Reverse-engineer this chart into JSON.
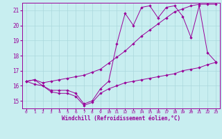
{
  "x": [
    0,
    1,
    2,
    3,
    4,
    5,
    6,
    7,
    8,
    9,
    10,
    11,
    12,
    13,
    14,
    15,
    16,
    17,
    18,
    19,
    20,
    21,
    22,
    23
  ],
  "line_mid": [
    16.3,
    16.4,
    16.0,
    15.7,
    15.7,
    15.7,
    15.5,
    14.8,
    15.0,
    15.8,
    16.3,
    18.8,
    20.8,
    20.0,
    21.2,
    21.3,
    20.5,
    21.2,
    21.3,
    20.6,
    19.2,
    21.3,
    18.2,
    17.6
  ],
  "line_max": [
    16.3,
    16.4,
    16.2,
    16.3,
    16.4,
    16.5,
    16.6,
    16.7,
    16.9,
    17.1,
    17.5,
    17.9,
    18.3,
    18.8,
    19.3,
    19.7,
    20.1,
    20.5,
    20.9,
    21.1,
    21.3,
    21.4,
    21.4,
    21.4
  ],
  "line_min": [
    16.3,
    16.1,
    16.0,
    15.6,
    15.5,
    15.5,
    15.3,
    14.7,
    14.9,
    15.5,
    15.8,
    16.0,
    16.2,
    16.3,
    16.4,
    16.5,
    16.6,
    16.7,
    16.8,
    17.0,
    17.1,
    17.2,
    17.4,
    17.55
  ],
  "line_color": "#990099",
  "bg_color": "#c8eef0",
  "grid_color": "#aad8dc",
  "xlabel": "Windchill (Refroidissement éolien,°C)",
  "ylim": [
    14.5,
    21.5
  ],
  "xlim": [
    -0.5,
    23.5
  ],
  "yticks": [
    15,
    16,
    17,
    18,
    19,
    20,
    21
  ],
  "xticks": [
    0,
    1,
    2,
    3,
    4,
    5,
    6,
    7,
    8,
    9,
    10,
    11,
    12,
    13,
    14,
    15,
    16,
    17,
    18,
    19,
    20,
    21,
    22,
    23
  ]
}
